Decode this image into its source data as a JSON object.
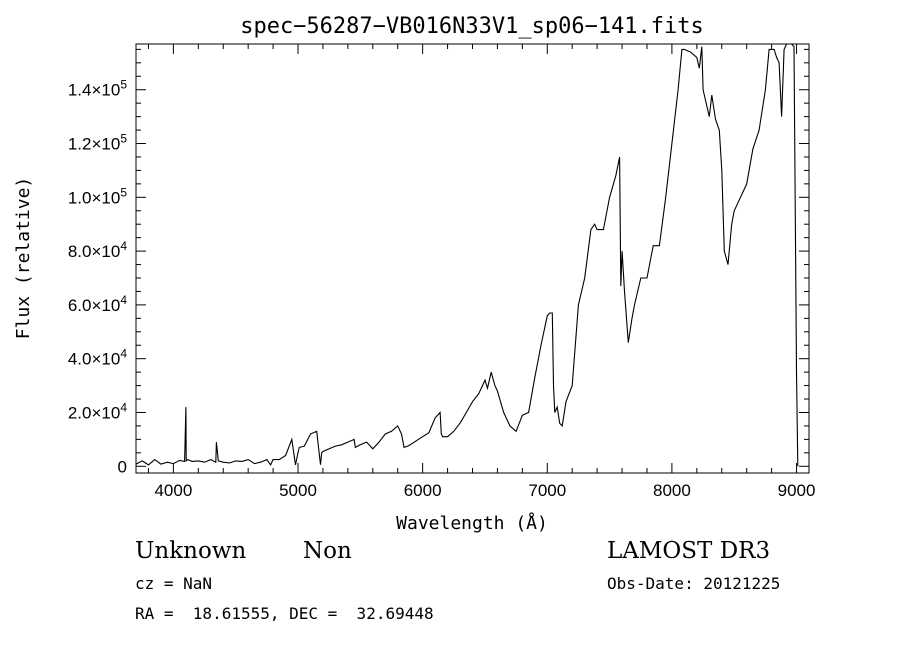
{
  "chart_data": {
    "type": "line",
    "title": "spec−56287−VB016N33V1_sp06−141.fits",
    "xlabel": "Wavelength (Å)",
    "ylabel": "Flux (relative)",
    "xlim": [
      3700,
      9100
    ],
    "ylim": [
      -2500,
      157000
    ],
    "xticks": [
      {
        "value": 4000,
        "label": "4000"
      },
      {
        "value": 5000,
        "label": "5000"
      },
      {
        "value": 6000,
        "label": "6000"
      },
      {
        "value": 7000,
        "label": "7000"
      },
      {
        "value": 8000,
        "label": "8000"
      },
      {
        "value": 9000,
        "label": "9000"
      }
    ],
    "yticks": [
      {
        "value": 0,
        "mant": "0",
        "exp": ""
      },
      {
        "value": 20000,
        "mant": "2.0×10",
        "exp": "4"
      },
      {
        "value": 40000,
        "mant": "4.0×10",
        "exp": "4"
      },
      {
        "value": 60000,
        "mant": "6.0×10",
        "exp": "4"
      },
      {
        "value": 80000,
        "mant": "8.0×10",
        "exp": "4"
      },
      {
        "value": 100000,
        "mant": "1.0×10",
        "exp": "5"
      },
      {
        "value": 120000,
        "mant": "1.2×10",
        "exp": "5"
      },
      {
        "value": 140000,
        "mant": "1.4×10",
        "exp": "5"
      }
    ],
    "series": [
      {
        "name": "spectrum",
        "x": [
          3700,
          3750,
          3800,
          3850,
          3900,
          3950,
          4000,
          4050,
          4090,
          4100,
          4103,
          4115,
          4150,
          4200,
          4250,
          4300,
          4340,
          4345,
          4360,
          4400,
          4450,
          4500,
          4550,
          4600,
          4650,
          4700,
          4750,
          4780,
          4800,
          4850,
          4900,
          4950,
          4980,
          5000,
          5010,
          5050,
          5100,
          5150,
          5180,
          5190,
          5200,
          5250,
          5300,
          5350,
          5400,
          5450,
          5460,
          5500,
          5550,
          5600,
          5650,
          5700,
          5750,
          5800,
          5830,
          5850,
          5880,
          5900,
          5950,
          6000,
          6050,
          6100,
          6140,
          6150,
          6160,
          6200,
          6250,
          6300,
          6350,
          6400,
          6450,
          6500,
          6520,
          6550,
          6580,
          6600,
          6650,
          6700,
          6750,
          6800,
          6850,
          6900,
          6950,
          7000,
          7020,
          7040,
          7050,
          7060,
          7080,
          7100,
          7120,
          7150,
          7200,
          7250,
          7300,
          7350,
          7380,
          7400,
          7450,
          7500,
          7550,
          7580,
          7590,
          7600,
          7620,
          7650,
          7680,
          7700,
          7750,
          7800,
          7850,
          7900,
          7950,
          8000,
          8050,
          8080,
          8100,
          8150,
          8200,
          8220,
          8240,
          8250,
          8280,
          8300,
          8320,
          8350,
          8380,
          8400,
          8420,
          8450,
          8480,
          8500,
          8550,
          8600,
          8650,
          8700,
          8750,
          8780,
          8800,
          8820,
          8840,
          8860,
          8880,
          8900,
          8920,
          8940,
          8960,
          8980,
          9000,
          9010
        ],
        "y": [
          800,
          2000,
          500,
          2500,
          800,
          1500,
          1000,
          2200,
          1800,
          22000,
          2000,
          2500,
          1800,
          2000,
          1500,
          2500,
          1500,
          9000,
          2000,
          1500,
          1200,
          2000,
          1800,
          2500,
          1000,
          1500,
          2500,
          500,
          2500,
          2500,
          4000,
          10000,
          500,
          5000,
          7000,
          7500,
          12000,
          13000,
          600,
          5000,
          5500,
          6500,
          7500,
          8000,
          9000,
          10000,
          7000,
          8000,
          9000,
          6500,
          9000,
          12000,
          13000,
          15000,
          12000,
          7000,
          7500,
          8000,
          9500,
          11000,
          12500,
          18000,
          20000,
          12000,
          11000,
          11000,
          13000,
          16000,
          20000,
          24000,
          27000,
          32000,
          29000,
          35000,
          30000,
          28000,
          20000,
          15000,
          13000,
          19000,
          20000,
          33000,
          45000,
          56000,
          57000,
          57000,
          30000,
          20000,
          22000,
          16000,
          15000,
          24000,
          30000,
          60000,
          70000,
          88000,
          90000,
          88000,
          88000,
          100000,
          108000,
          115000,
          67000,
          80000,
          65000,
          46000,
          55000,
          60000,
          70000,
          70000,
          82000,
          82000,
          100000,
          120000,
          140000,
          155000,
          155000,
          154000,
          152000,
          148000,
          156000,
          140000,
          134000,
          130000,
          138000,
          129000,
          125000,
          110000,
          80000,
          75000,
          90000,
          95000,
          100000,
          105000,
          118000,
          125000,
          140000,
          155000,
          155000,
          155000,
          152000,
          150000,
          130000,
          155000,
          157000,
          157000,
          157000,
          156000,
          35000,
          0
        ]
      }
    ]
  },
  "info": {
    "obj_class": "Unknown",
    "obj_subclass": "Non",
    "survey": "LAMOST DR3",
    "cz": "cz = NaN",
    "obs_date": "Obs-Date: 20121225",
    "coords": "RA =  18.61555, DEC =  32.69448"
  }
}
